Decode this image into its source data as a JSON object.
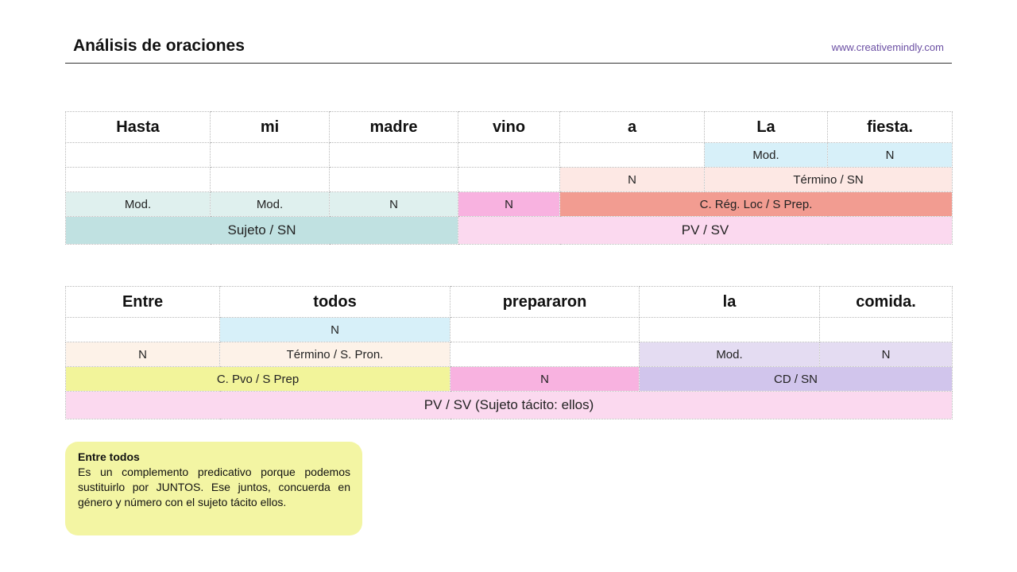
{
  "header": {
    "title": "Análisis de oraciones",
    "website": "www.creativemindly.com"
  },
  "sentence1": {
    "words": [
      "Hasta",
      "mi",
      "madre",
      "vino",
      "a",
      "La",
      "fiesta."
    ],
    "row2": [
      "Mod.",
      "N"
    ],
    "row3": [
      "N",
      "Término / SN"
    ],
    "row4": [
      "Mod.",
      "Mod.",
      "N",
      "N",
      "C. Rég. Loc / S Prep."
    ],
    "row5": [
      "Sujeto / SN",
      "PV / SV"
    ]
  },
  "sentence2": {
    "words": [
      "Entre",
      "todos",
      "prepararon",
      "la",
      "comida."
    ],
    "row2": [
      "N"
    ],
    "row3": [
      "N",
      "Término / S. Pron.",
      "Mod.",
      "N"
    ],
    "row4": [
      "C. Pvo / S Prep",
      "N",
      "CD / SN"
    ],
    "row5": [
      "PV / SV (Sujeto tácito: ellos)"
    ]
  },
  "note": {
    "title": "Entre todos",
    "body": "Es un complemento predicativo porque podemos sustituirlo por JUNTOS. Ese juntos, concuerda en género y número con el sujeto tácito ellos."
  },
  "colors": {
    "header_link": "#6b4fa3",
    "modifier_blue": "#d7f0f9",
    "term_peach": "#fde8e4",
    "subject_teal": "#c0e1e1",
    "verb_pink": "#f8b2e0",
    "regimen_salmon": "#f29c91",
    "predicate_pink": "#fbd9ef",
    "cd_lavender": "#d1c5ec",
    "predicative_yellow": "#f2f49a"
  }
}
